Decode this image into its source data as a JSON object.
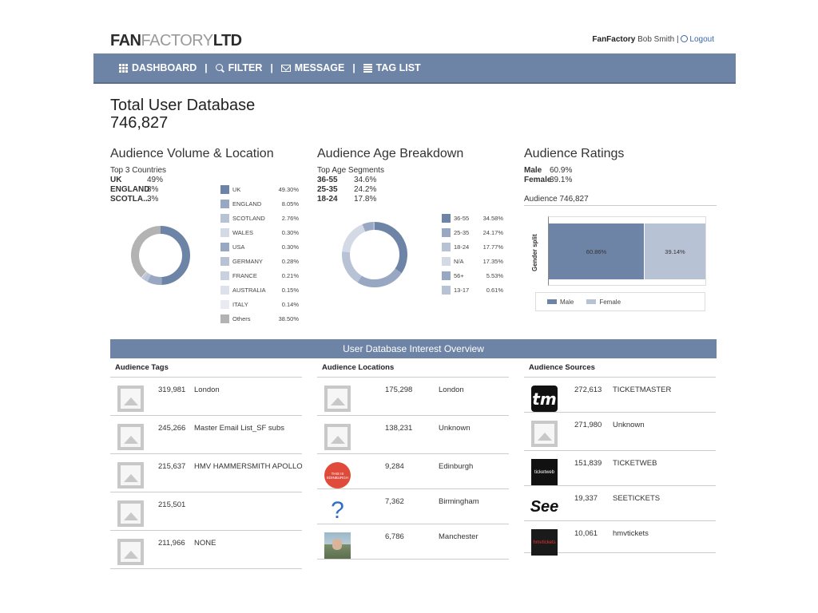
{
  "header": {
    "logo_bold": "FAN",
    "logo_light": "FACTORY",
    "logo_end": "LTD",
    "brand": "FanFactory",
    "user": "Bob Smith",
    "separator": "|",
    "logout": "Logout"
  },
  "nav": {
    "items": [
      {
        "label": "DASHBOARD",
        "icon": "grid-icon"
      },
      {
        "label": "FILTER",
        "icon": "search-icon"
      },
      {
        "label": "MESSAGE",
        "icon": "mail-icon"
      },
      {
        "label": "TAG LIST",
        "icon": "list-icon"
      }
    ],
    "separator": "|"
  },
  "totals": {
    "title": "Total User Database",
    "value": "746,827"
  },
  "volume": {
    "title": "Audience Volume & Location",
    "subhead": "Top 3 Countries",
    "top": [
      {
        "name": "UK",
        "value": "49%"
      },
      {
        "name": "ENGLAND",
        "value": "8%"
      },
      {
        "name": "SCOTLA...",
        "value": "3%"
      }
    ],
    "legend": [
      {
        "label": "UK",
        "value": "49.30%",
        "color": "#6e84a6"
      },
      {
        "label": "ENGLAND",
        "value": "8.05%",
        "color": "#98a8c2"
      },
      {
        "label": "SCOTLAND",
        "value": "2.76%",
        "color": "#b7c2d5"
      },
      {
        "label": "WALES",
        "value": "0.30%",
        "color": "#d4dae5"
      },
      {
        "label": "USA",
        "value": "0.30%",
        "color": "#98a8c2"
      },
      {
        "label": "GERMANY",
        "value": "0.28%",
        "color": "#b7c2d5"
      },
      {
        "label": "FRANCE",
        "value": "0.21%",
        "color": "#c9d1df"
      },
      {
        "label": "AUSTRALIA",
        "value": "0.15%",
        "color": "#dde2ea"
      },
      {
        "label": "ITALY",
        "value": "0.14%",
        "color": "#e8ebf1"
      },
      {
        "label": "Others",
        "value": "38.50%",
        "color": "#b3b3b3"
      }
    ]
  },
  "age": {
    "title": "Audience Age Breakdown",
    "subhead": "Top Age Segments",
    "top": [
      {
        "name": "36-55",
        "value": "34.6%"
      },
      {
        "name": "25-35",
        "value": "24.2%"
      },
      {
        "name": "18-24",
        "value": "17.8%"
      }
    ],
    "legend": [
      {
        "label": "36-55",
        "value": "34.58%",
        "color": "#6e84a6"
      },
      {
        "label": "25-35",
        "value": "24.17%",
        "color": "#98a8c2"
      },
      {
        "label": "18-24",
        "value": "17.77%",
        "color": "#b7c2d5"
      },
      {
        "label": "N/A",
        "value": "17.35%",
        "color": "#d4dae5"
      },
      {
        "label": "56+",
        "value": "5.53%",
        "color": "#98a8c2"
      },
      {
        "label": "13-17",
        "value": "0.61%",
        "color": "#b7c2d5"
      }
    ]
  },
  "ratings": {
    "title": "Audience Ratings",
    "stats": [
      {
        "name": "Male",
        "value": "60.9%"
      },
      {
        "name": "Female",
        "value": "39.1%"
      }
    ],
    "audience_label": "Audience 746,827",
    "axis_label": "Gender split",
    "legend_male": "Male",
    "legend_female": "Female"
  },
  "chart_data": [
    {
      "type": "pie",
      "categories": [
        "UK",
        "ENGLAND",
        "SCOTLAND",
        "WALES",
        "USA",
        "GERMANY",
        "FRANCE",
        "AUSTRALIA",
        "ITALY",
        "Others"
      ],
      "values": [
        49.3,
        8.05,
        2.76,
        0.3,
        0.3,
        0.28,
        0.21,
        0.15,
        0.14,
        38.5
      ],
      "title": "Audience Volume & Location"
    },
    {
      "type": "pie",
      "categories": [
        "36-55",
        "25-35",
        "18-24",
        "N/A",
        "56+",
        "13-17"
      ],
      "values": [
        34.58,
        24.17,
        17.77,
        17.35,
        5.53,
        0.61
      ],
      "title": "Audience Age Breakdown"
    },
    {
      "type": "bar",
      "categories": [
        "Male",
        "Female"
      ],
      "values": [
        60.86,
        39.14
      ],
      "value_labels": [
        "60.86%",
        "39.14%"
      ],
      "colors": [
        "#6e84a6",
        "#b7c2d5"
      ],
      "ylabel": "Gender split",
      "stacked": true,
      "orientation": "horizontal"
    }
  ],
  "overview": {
    "title": "User Database Interest Overview",
    "tags": {
      "heading": "Audience Tags",
      "rows": [
        {
          "count": "319,981",
          "name": "London",
          "logo": "image-placeholder-icon"
        },
        {
          "count": "245,266",
          "name": "Master Email List_SF subs",
          "logo": "image-placeholder-icon"
        },
        {
          "count": "215,637",
          "name": "HMV HAMMERSMITH APOLLO",
          "logo": "image-placeholder-icon"
        },
        {
          "count": "215,501",
          "name": "",
          "logo": "image-placeholder-icon"
        },
        {
          "count": "211,966",
          "name": "NONE",
          "logo": "image-placeholder-icon"
        }
      ]
    },
    "locations": {
      "heading": "Audience Locations",
      "rows": [
        {
          "count": "175,298",
          "name": "London",
          "logo": "image-placeholder-icon"
        },
        {
          "count": "138,231",
          "name": "Unknown",
          "logo": "image-placeholder-icon"
        },
        {
          "count": "9,284",
          "name": "Edinburgh",
          "logo": "edinburgh-logo",
          "logo_text": "THIS IS EDINBURGH"
        },
        {
          "count": "7,362",
          "name": "Birmingham",
          "logo": "question-mark-icon",
          "logo_text": "?"
        },
        {
          "count": "6,786",
          "name": "Manchester",
          "logo": "manchester-photo"
        }
      ]
    },
    "sources": {
      "heading": "Audience Sources",
      "rows": [
        {
          "count": "272,613",
          "name": "TICKETMASTER",
          "logo": "ticketmaster-logo",
          "logo_text": "tm"
        },
        {
          "count": "271,980",
          "name": "Unknown",
          "logo": "image-placeholder-icon"
        },
        {
          "count": "151,839",
          "name": "TICKETWEB",
          "logo": "ticketweb-logo",
          "logo_text": "ticketweb"
        },
        {
          "count": "19,337",
          "name": "SEETICKETS",
          "logo": "seetickets-logo",
          "logo_text": "See"
        },
        {
          "count": "10,061",
          "name": "hmvtickets",
          "logo": "hmvtickets-logo",
          "logo_text": "hmvtickets"
        }
      ]
    }
  }
}
